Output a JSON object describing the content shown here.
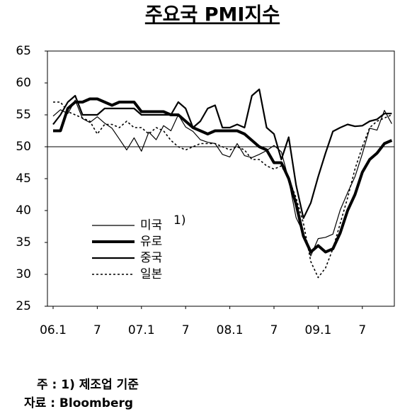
{
  "chart_data": {
    "type": "line",
    "title": "주요국 PMI지수",
    "categories": [
      "06.1",
      null,
      null,
      null,
      null,
      null,
      "7",
      null,
      null,
      null,
      null,
      null,
      "07.1",
      null,
      null,
      null,
      null,
      null,
      "7",
      null,
      null,
      null,
      null,
      null,
      "08.1",
      null,
      null,
      null,
      null,
      null,
      "7",
      null,
      null,
      null,
      null,
      null,
      "09.1",
      null,
      null,
      null,
      null,
      null,
      "7",
      null,
      null,
      null,
      null
    ],
    "series": [
      {
        "name": "미국",
        "name_note": "1)",
        "color": "#000000",
        "width": 1.2,
        "dash": false,
        "values": [
          54.8,
          55.8,
          55.2,
          57.3,
          54.4,
          53.8,
          54.7,
          53.7,
          52.9,
          51.2,
          49.5,
          51.4,
          49.3,
          52.3,
          51.1,
          53.3,
          52.5,
          55.0,
          53.1,
          52.4,
          51.1,
          50.7,
          50.5,
          48.8,
          48.4,
          50.5,
          48.6,
          48.3,
          48.8,
          49.4,
          50.2,
          49.2,
          44.8,
          38.9,
          36.5,
          32.9,
          35.6,
          35.8,
          36.3,
          40.1,
          42.8,
          45.3,
          48.9,
          52.9,
          52.6,
          55.7,
          53.6
        ]
      },
      {
        "name": "유로",
        "color": "#000000",
        "width": 4,
        "dash": false,
        "values": [
          52.5,
          52.5,
          56,
          57,
          57,
          57.5,
          57.5,
          57,
          56.5,
          57,
          57,
          57,
          55.5,
          55.5,
          55.5,
          55.5,
          55,
          55,
          54,
          53,
          52.5,
          52,
          52.5,
          52.5,
          52.5,
          52.5,
          52,
          51,
          50,
          49.5,
          47.5,
          47.5,
          45,
          41,
          36,
          33.5,
          34.5,
          33.5,
          34,
          36.5,
          40,
          42.5,
          46,
          48,
          49,
          50.5,
          51
        ]
      },
      {
        "name": "중국",
        "color": "#000000",
        "width": 2.2,
        "dash": false,
        "values": [
          53.5,
          55,
          57,
          58,
          55,
          55,
          55,
          56,
          56,
          56,
          56,
          56,
          55,
          55,
          55,
          55,
          55,
          57,
          56,
          53,
          54,
          56,
          56.5,
          53,
          53,
          53.5,
          53,
          58,
          59,
          53,
          52,
          48,
          51.5,
          44,
          38.8,
          41.2,
          45.3,
          49,
          52.4,
          53,
          53.5,
          53.2,
          53.3,
          54,
          54.3,
          55.2,
          55.2
        ]
      },
      {
        "name": "일본",
        "color": "#000000",
        "width": 1.6,
        "dash": true,
        "values": [
          57,
          57,
          55.5,
          55,
          54.5,
          54,
          52,
          53.5,
          53.5,
          53,
          54,
          53,
          53,
          52,
          53,
          52.5,
          51,
          50,
          49.5,
          50,
          50.5,
          50.5,
          50.5,
          50,
          49.5,
          50,
          49.5,
          48,
          48,
          47,
          46.5,
          47,
          45,
          42,
          38,
          32,
          29.5,
          31,
          34,
          38,
          42,
          46.5,
          50,
          53,
          54,
          54.5,
          55
        ]
      }
    ],
    "ylim": [
      25,
      65
    ],
    "yticks": [
      25,
      30,
      35,
      40,
      45,
      50,
      55,
      60,
      65
    ],
    "hline": 50,
    "legend": "center-left",
    "notes": [
      "주 : 1) 제조업 기준",
      "자료 : Bloomberg"
    ]
  }
}
